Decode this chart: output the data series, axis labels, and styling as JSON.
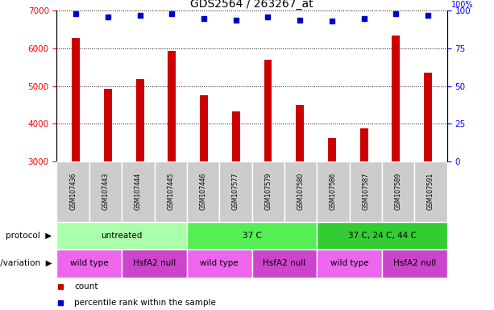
{
  "title": "GDS2564 / 263267_at",
  "samples": [
    "GSM107436",
    "GSM107443",
    "GSM107444",
    "GSM107445",
    "GSM107446",
    "GSM107577",
    "GSM107579",
    "GSM107580",
    "GSM107586",
    "GSM107587",
    "GSM107589",
    "GSM107591"
  ],
  "counts": [
    6280,
    4920,
    5180,
    5940,
    4760,
    4330,
    5700,
    4500,
    3610,
    3870,
    6340,
    5360
  ],
  "percentile_ranks": [
    98,
    96,
    97,
    98,
    95,
    94,
    96,
    94,
    93,
    95,
    98,
    97
  ],
  "ylim_left": [
    3000,
    7000
  ],
  "ylim_right": [
    0,
    100
  ],
  "yticks_left": [
    3000,
    4000,
    5000,
    6000,
    7000
  ],
  "yticks_right": [
    0,
    25,
    50,
    75,
    100
  ],
  "bar_color": "#cc0000",
  "dot_color": "#0000cc",
  "protocol_groups": [
    {
      "label": "untreated",
      "start": 0,
      "end": 4,
      "color": "#aaffaa"
    },
    {
      "label": "37 C",
      "start": 4,
      "end": 8,
      "color": "#55ee55"
    },
    {
      "label": "37 C, 24 C, 44 C",
      "start": 8,
      "end": 12,
      "color": "#33cc33"
    }
  ],
  "genotype_groups": [
    {
      "label": "wild type",
      "start": 0,
      "end": 2,
      "color": "#ee66ee"
    },
    {
      "label": "HsfA2 null",
      "start": 2,
      "end": 4,
      "color": "#cc44cc"
    },
    {
      "label": "wild type",
      "start": 4,
      "end": 6,
      "color": "#ee66ee"
    },
    {
      "label": "HsfA2 null",
      "start": 6,
      "end": 8,
      "color": "#cc44cc"
    },
    {
      "label": "wild type",
      "start": 8,
      "end": 10,
      "color": "#ee66ee"
    },
    {
      "label": "HsfA2 null",
      "start": 10,
      "end": 12,
      "color": "#cc44cc"
    }
  ],
  "protocol_label": "protocol",
  "genotype_label": "genotype/variation",
  "legend_count_label": "count",
  "legend_percentile_label": "percentile rank within the sample",
  "sample_row_color": "#cccccc"
}
